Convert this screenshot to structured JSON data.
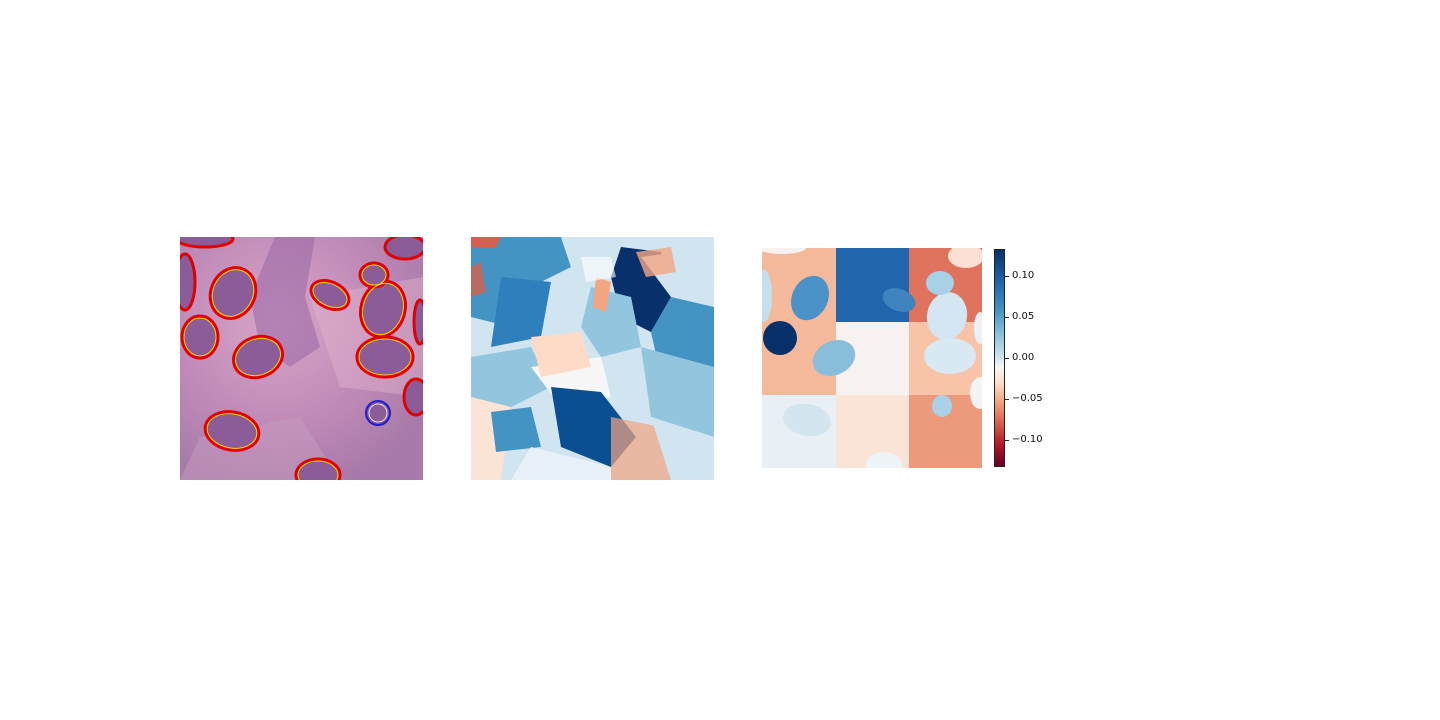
{
  "colorbar": {
    "ticks": [
      "0.10",
      "0.05",
      "0.00",
      "−0.05",
      "−0.10"
    ],
    "colormap": [
      "#67001f",
      "#b2182b",
      "#d6604d",
      "#f4a582",
      "#fddbc7",
      "#f7f7f7",
      "#d1e5f0",
      "#92c5de",
      "#4393c3",
      "#2166ac",
      "#08306b"
    ]
  },
  "colors": {
    "tissue_base": "#c98fb5",
    "nucleus": "#8a5a95",
    "contour_outer": "#e00000",
    "contour_inner": "#ffd500",
    "contour_selected": "#1f1fd0"
  }
}
